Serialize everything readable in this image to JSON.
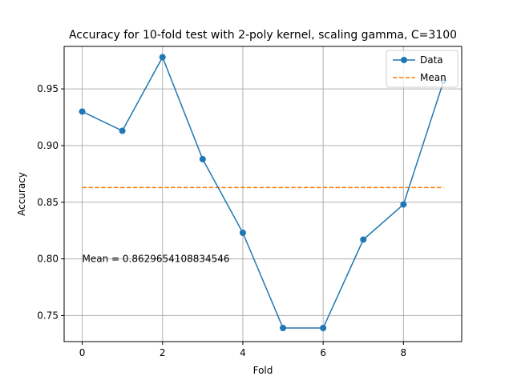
{
  "chart_data": {
    "type": "line",
    "title": "Accuracy for 10-fold test with 2-poly kernel, scaling gamma, C=3100",
    "xlabel": "Fold",
    "ylabel": "Accuracy",
    "x": [
      0,
      1,
      2,
      3,
      4,
      5,
      6,
      7,
      8,
      9
    ],
    "xlim": [
      -0.45,
      9.45
    ],
    "ylim": [
      0.727,
      0.9875
    ],
    "xticks": [
      0,
      2,
      4,
      6,
      8
    ],
    "xtick_labels": [
      "0",
      "2",
      "4",
      "6",
      "8"
    ],
    "yticks": [
      0.75,
      0.8,
      0.85,
      0.9,
      0.95
    ],
    "ytick_labels": [
      "0.75",
      "0.80",
      "0.85",
      "0.90",
      "0.95"
    ],
    "grid": true,
    "legend_position": "top-right",
    "series": [
      {
        "name": "Data",
        "color": "#1f77b4",
        "style": "solid-line-with-circle-markers",
        "values": [
          0.93,
          0.913,
          0.978,
          0.888,
          0.823,
          0.739,
          0.739,
          0.817,
          0.848,
          0.957
        ]
      },
      {
        "name": "Mean",
        "color": "#ff7f0e",
        "style": "dashed-line",
        "values": [
          0.8629654108834546,
          0.8629654108834546,
          0.8629654108834546,
          0.8629654108834546,
          0.8629654108834546,
          0.8629654108834546,
          0.8629654108834546,
          0.8629654108834546,
          0.8629654108834546,
          0.8629654108834546
        ]
      }
    ],
    "annotation": {
      "text": "Mean = 0.8629654108834546",
      "x": 0,
      "y": 0.8
    }
  }
}
